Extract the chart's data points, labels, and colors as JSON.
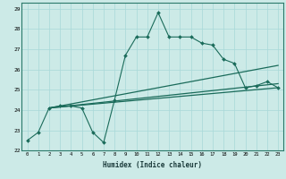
{
  "title": "",
  "xlabel": "Humidex (Indice chaleur)",
  "ylabel": "",
  "bg_color": "#cceae7",
  "line_color": "#1a6b5a",
  "grid_color": "#a8d8d8",
  "xlim": [
    -0.5,
    23.5
  ],
  "ylim": [
    22,
    29.3
  ],
  "xticks": [
    0,
    1,
    2,
    3,
    4,
    5,
    6,
    7,
    8,
    9,
    10,
    11,
    12,
    13,
    14,
    15,
    16,
    17,
    18,
    19,
    20,
    21,
    22,
    23
  ],
  "yticks": [
    22,
    23,
    24,
    25,
    26,
    27,
    28,
    29
  ],
  "line1": {
    "x": [
      0,
      1,
      2,
      3,
      4,
      5,
      6,
      7,
      8,
      9,
      10,
      11,
      12,
      13,
      14,
      15,
      16,
      17,
      18,
      19,
      20,
      21,
      22,
      23
    ],
    "y": [
      22.5,
      22.9,
      24.1,
      24.2,
      24.2,
      24.1,
      22.9,
      22.4,
      24.5,
      26.7,
      27.6,
      27.6,
      28.8,
      27.6,
      27.6,
      27.6,
      27.3,
      27.2,
      26.5,
      26.3,
      25.1,
      25.2,
      25.4,
      25.1
    ]
  },
  "line2": {
    "x": [
      2,
      23
    ],
    "y": [
      24.1,
      26.2
    ]
  },
  "line3": {
    "x": [
      2,
      23
    ],
    "y": [
      24.1,
      25.3
    ]
  },
  "line4": {
    "x": [
      2,
      23
    ],
    "y": [
      24.1,
      25.1
    ]
  }
}
